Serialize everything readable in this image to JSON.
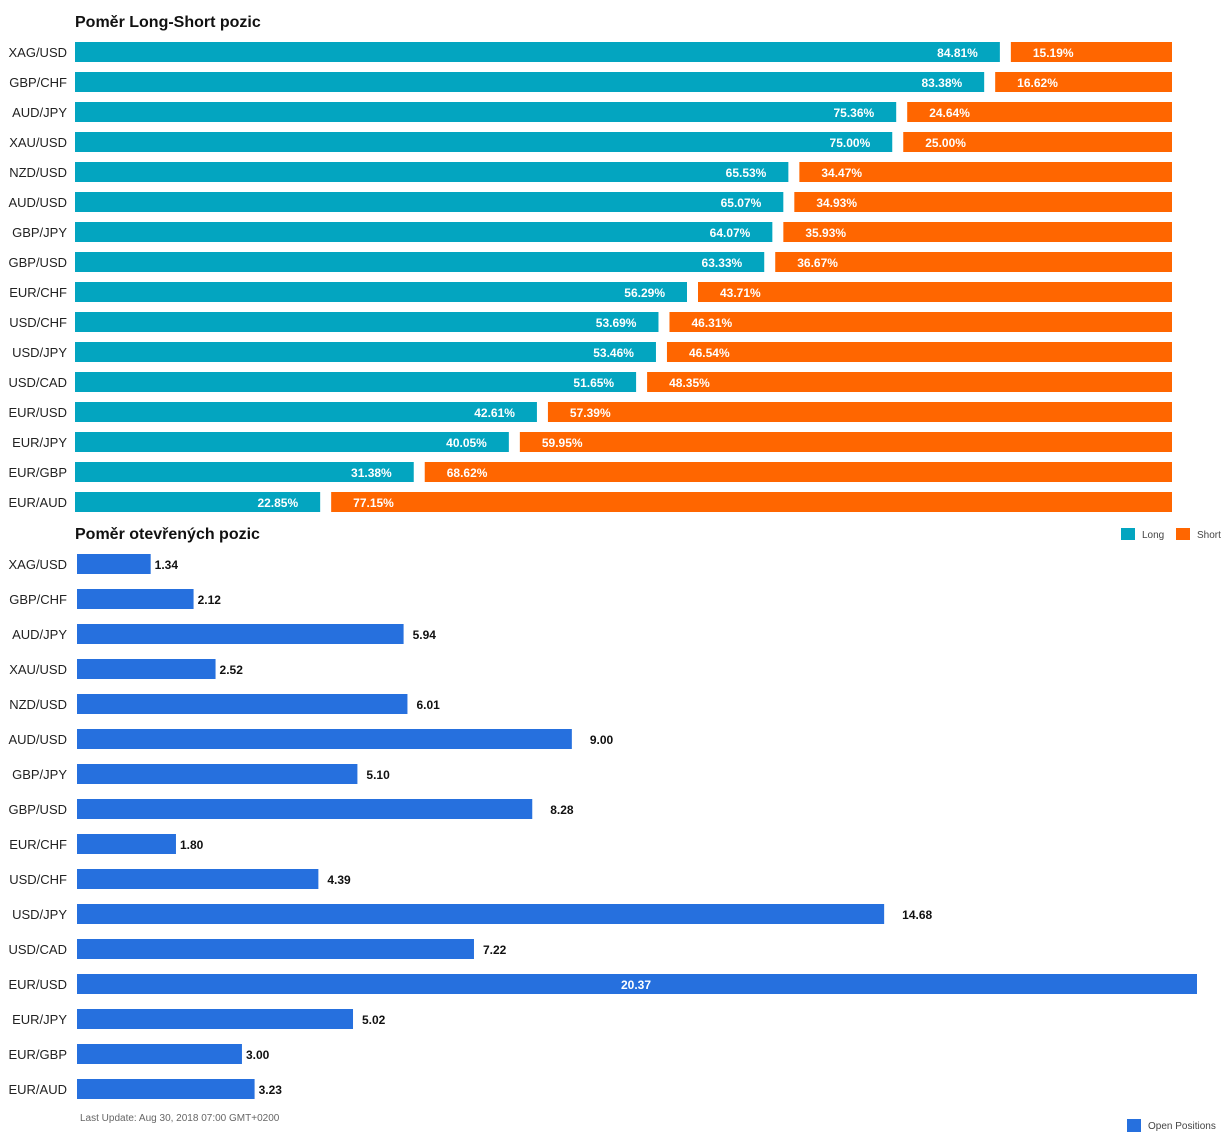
{
  "colors": {
    "long": "#03a5c0",
    "short": "#ff6600",
    "open": "#2670de"
  },
  "chart_data": [
    {
      "type": "bar",
      "stacked": true,
      "orientation": "horizontal",
      "title": "Poměr Long-Short pozic",
      "categories": [
        "XAG/USD",
        "GBP/CHF",
        "AUD/JPY",
        "XAU/USD",
        "NZD/USD",
        "AUD/USD",
        "GBP/JPY",
        "GBP/USD",
        "EUR/CHF",
        "USD/CHF",
        "USD/JPY",
        "USD/CAD",
        "EUR/USD",
        "EUR/JPY",
        "EUR/GBP",
        "EUR/AUD"
      ],
      "series": [
        {
          "name": "Long",
          "values": [
            84.81,
            83.38,
            75.36,
            75.0,
            65.53,
            65.07,
            64.07,
            63.33,
            56.29,
            53.69,
            53.46,
            51.65,
            42.61,
            40.05,
            31.38,
            22.85
          ]
        },
        {
          "name": "Short",
          "values": [
            15.19,
            16.62,
            24.64,
            25.0,
            34.47,
            34.93,
            35.93,
            36.67,
            43.71,
            46.31,
            46.54,
            48.35,
            57.39,
            59.95,
            68.62,
            77.15
          ]
        }
      ],
      "labels": {
        "Long": [
          "84.81%",
          "83.38%",
          "75.36%",
          "75.00%",
          "65.53%",
          "65.07%",
          "64.07%",
          "63.33%",
          "56.29%",
          "53.69%",
          "53.46%",
          "51.65%",
          "42.61%",
          "40.05%",
          "31.38%",
          "22.85%"
        ],
        "Short": [
          "15.19%",
          "16.62%",
          "24.64%",
          "25.00%",
          "34.47%",
          "34.93%",
          "35.93%",
          "36.67%",
          "43.71%",
          "46.31%",
          "46.54%",
          "48.35%",
          "57.39%",
          "59.95%",
          "68.62%",
          "77.15%"
        ]
      },
      "xlim": [
        0,
        100
      ],
      "legend_position": "right"
    },
    {
      "type": "bar",
      "orientation": "horizontal",
      "title": "Poměr otevřených pozic",
      "categories": [
        "XAG/USD",
        "GBP/CHF",
        "AUD/JPY",
        "XAU/USD",
        "NZD/USD",
        "AUD/USD",
        "GBP/JPY",
        "GBP/USD",
        "EUR/CHF",
        "USD/CHF",
        "USD/JPY",
        "USD/CAD",
        "EUR/USD",
        "EUR/JPY",
        "EUR/GBP",
        "EUR/AUD"
      ],
      "series": [
        {
          "name": "Open Positions",
          "values": [
            1.34,
            2.12,
            5.94,
            2.52,
            6.01,
            9.0,
            5.1,
            8.28,
            1.8,
            4.39,
            14.68,
            7.22,
            20.37,
            5.02,
            3.0,
            3.23
          ]
        }
      ],
      "labels": [
        "1.34",
        "2.12",
        "5.94",
        "2.52",
        "6.01",
        "9.00",
        "5.10",
        "8.28",
        "1.80",
        "4.39",
        "14.68",
        "7.22",
        "20.37",
        "5.02",
        "3.00",
        "3.23"
      ],
      "xlim": [
        0,
        20.37
      ],
      "legend_position": "bottom-right"
    }
  ],
  "legend": {
    "long_label": "Long",
    "short_label": "Short",
    "open_label": "Open Positions"
  },
  "footer": {
    "last_update": "Last Update: Aug 30, 2018 07:00 GMT+0200"
  }
}
